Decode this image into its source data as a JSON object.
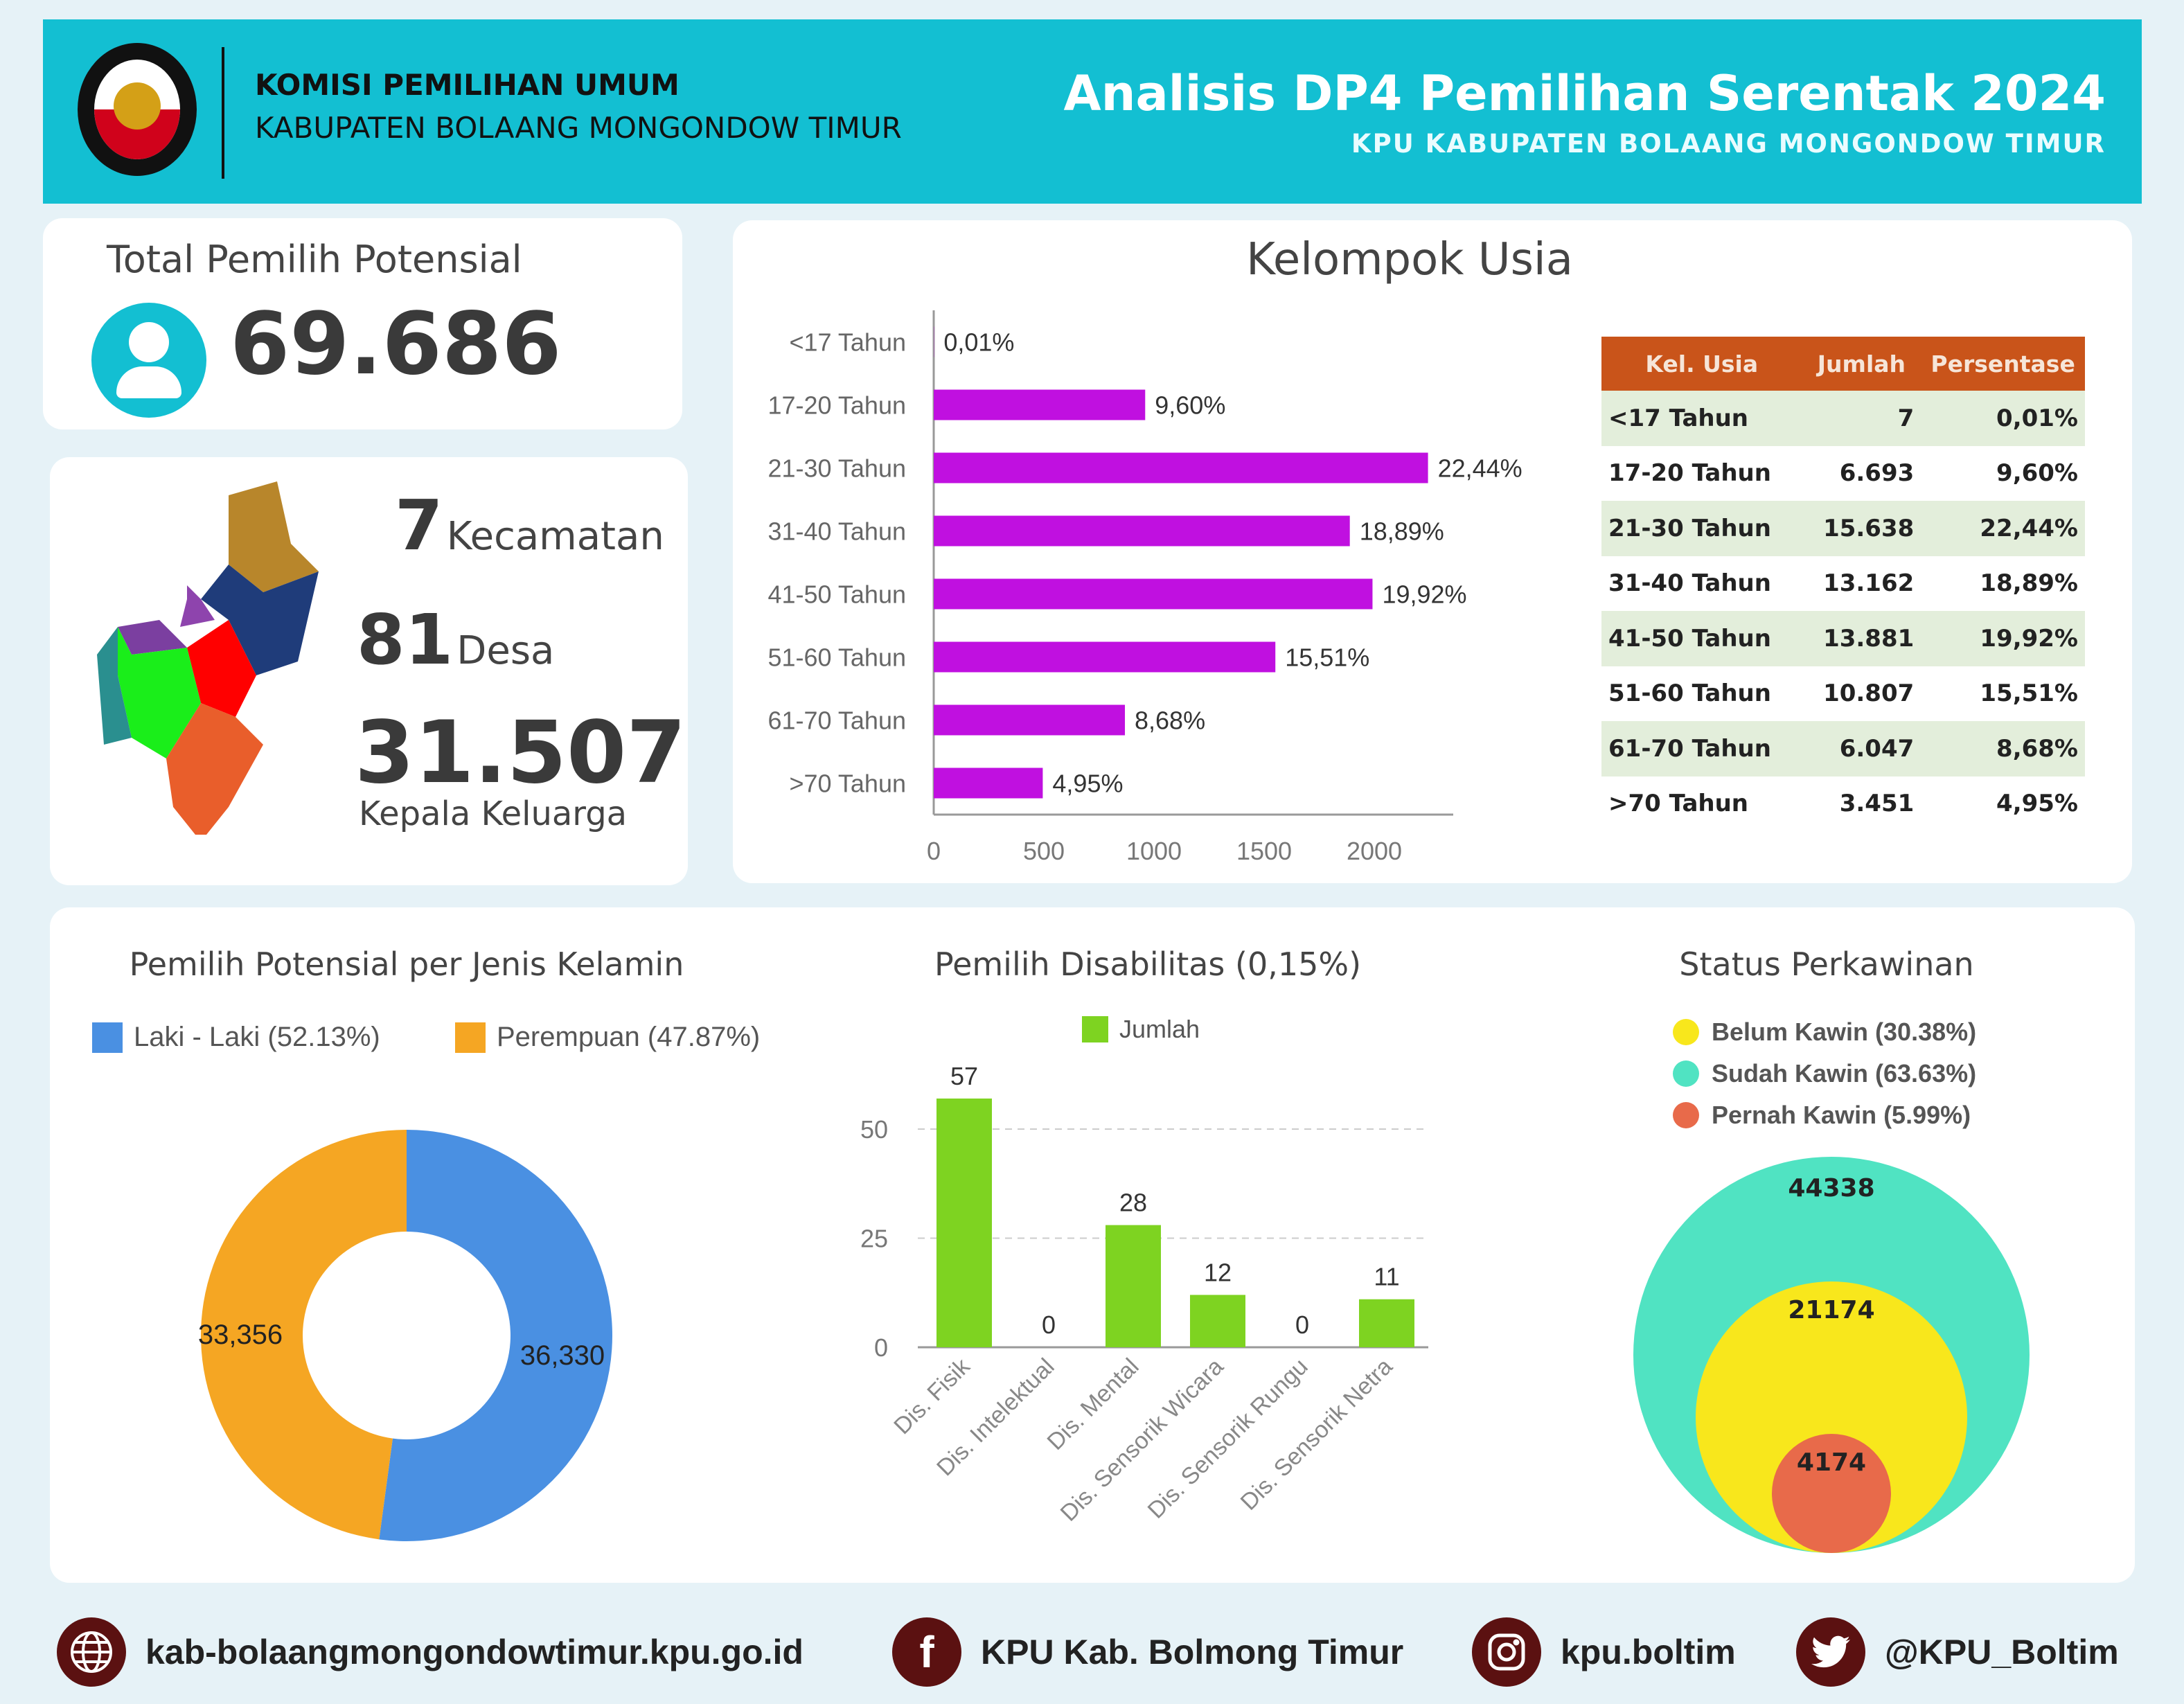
{
  "header": {
    "org_line1": "KOMISI PEMILIHAN UMUM",
    "org_line2": "KABUPATEN BOLAANG MONGONDOW TIMUR",
    "title": "Analisis DP4 Pemilihan Serentak 2024",
    "subtitle": "KPU KABUPATEN BOLAANG MONGONDOW TIMUR",
    "logo_text": "KOMISI PEMILIHAN UMUM"
  },
  "total": {
    "label": "Total Pemilih Potensial",
    "value": "69.686",
    "icon": "user-icon"
  },
  "region": {
    "kecamatan_value": "7",
    "kecamatan_label": "Kecamatan",
    "desa_value": "81",
    "desa_label": "Desa",
    "kk_value": "31.507",
    "kk_label": "Kepala Keluarga"
  },
  "age": {
    "title": "Kelompok Usia",
    "table": {
      "headers": [
        "Kel. Usia",
        "Jumlah",
        "Persentase"
      ],
      "rows": [
        [
          "<17 Tahun",
          "7",
          "0,01%"
        ],
        [
          "17-20 Tahun",
          "6.693",
          "9,60%"
        ],
        [
          "21-30 Tahun",
          "15.638",
          "22,44%"
        ],
        [
          "31-40 Tahun",
          "13.162",
          "18,89%"
        ],
        [
          "41-50 Tahun",
          "13.881",
          "19,92%"
        ],
        [
          "51-60 Tahun",
          "10.807",
          "15,51%"
        ],
        [
          "61-70 Tahun",
          "6.047",
          "8,68%"
        ],
        [
          ">70 Tahun",
          "3.451",
          "4,95%"
        ]
      ]
    }
  },
  "gender": {
    "title": "Pemilih Potensial per Jenis Kelamin",
    "legend": [
      "Laki - Laki (52.13%)",
      "Perempuan (47.87%)"
    ]
  },
  "disability": {
    "title": "Pemilih Disabilitas (0,15%)",
    "legend": "Jumlah"
  },
  "marital": {
    "title": "Status Perkawinan",
    "legend": [
      "Belum Kawin (30.38%)",
      "Sudah Kawin (63.63%)",
      "Pernah Kawin (5.99%)"
    ]
  },
  "chart_data": [
    {
      "type": "bar",
      "orientation": "horizontal",
      "title": "Kelompok Usia",
      "categories": [
        "<17 Tahun",
        "17-20 Tahun",
        "21-30 Tahun",
        "31-40 Tahun",
        "41-50 Tahun",
        "51-60 Tahun",
        "61-70 Tahun",
        ">70 Tahun"
      ],
      "values": [
        1,
        960,
        2244,
        1889,
        1992,
        1551,
        868,
        495
      ],
      "data_labels": [
        "0,01%",
        "9,60%",
        "22,44%",
        "18,89%",
        "19,92%",
        "15,51%",
        "8,68%",
        "4,95%"
      ],
      "xticks": [
        "0",
        "500",
        "1000",
        "1500",
        "2000"
      ],
      "xlim": [
        0,
        2350
      ],
      "color": "#c010e0",
      "grid": false
    },
    {
      "type": "pie",
      "donut": true,
      "title": "Pemilih Potensial per Jenis Kelamin",
      "categories": [
        "Laki - Laki",
        "Perempuan"
      ],
      "values": [
        36330,
        33356
      ],
      "data_labels": [
        "36,330",
        "33,356"
      ],
      "colors": [
        "#4a90e2",
        "#f5a623"
      ],
      "legend": "top-left"
    },
    {
      "type": "bar",
      "title": "Pemilih Disabilitas (0,15%)",
      "categories": [
        "Dis. Fisik",
        "Dis. Intelektual",
        "Dis. Mental",
        "Dis. Sensorik Wicara",
        "Dis. Sensorik Rungu",
        "Dis. Sensorik Netra"
      ],
      "series": [
        {
          "name": "Jumlah",
          "values": [
            57,
            0,
            28,
            12,
            0,
            11
          ]
        }
      ],
      "yticks": [
        "0",
        "25",
        "50"
      ],
      "ylim": [
        0,
        60
      ],
      "color": "#7ed321",
      "grid": true,
      "legend": "top"
    },
    {
      "type": "bubble",
      "title": "Status Perkawinan",
      "categories": [
        "Sudah Kawin",
        "Belum Kawin",
        "Pernah Kawin"
      ],
      "values": [
        44338,
        21174,
        4174
      ],
      "colors": [
        "#50e3c2",
        "#f8e71c",
        "#e86a4a"
      ],
      "legend": "top"
    }
  ],
  "footer": {
    "website": "kab-bolaangmongondowtimur.kpu.go.id",
    "facebook": "KPU Kab. Bolmong Timur",
    "instagram": "kpu.boltim",
    "twitter": "@KPU_Boltim"
  }
}
